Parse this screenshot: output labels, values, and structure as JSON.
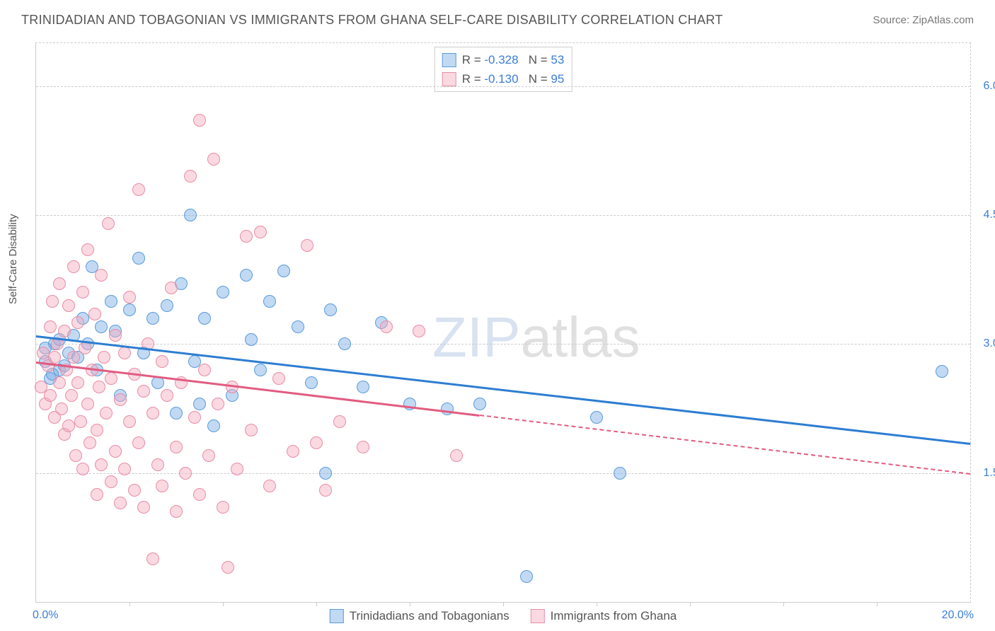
{
  "title": "TRINIDADIAN AND TOBAGONIAN VS IMMIGRANTS FROM GHANA SELF-CARE DISABILITY CORRELATION CHART",
  "source": "Source: ZipAtlas.com",
  "ylabel": "Self-Care Disability",
  "watermark_bold": "ZIP",
  "watermark_thin": "atlas",
  "chart": {
    "type": "scatter",
    "xlim": [
      0,
      20
    ],
    "ylim": [
      0,
      6.5
    ],
    "x_tick_min": "0.0%",
    "x_tick_max": "20.0%",
    "x_tick_color": "#3b7dd8",
    "y_ticks": [
      {
        "val": 1.5,
        "label": "1.5%"
      },
      {
        "val": 3.0,
        "label": "3.0%"
      },
      {
        "val": 4.5,
        "label": "4.5%"
      },
      {
        "val": 6.0,
        "label": "6.0%"
      }
    ],
    "y_tick_color": "#3b7dd8",
    "grid_color": "#cccccc",
    "background_color": "#ffffff",
    "bottom_tick_positions": [
      2,
      4,
      6,
      8,
      10,
      12,
      14,
      16,
      18
    ]
  },
  "series": [
    {
      "name": "Trinidadians and Tobagonians",
      "fill": "rgba(120,170,230,0.45)",
      "stroke": "#5a9bd8",
      "line_color": "#2d7dd2",
      "R": "-0.328",
      "N": "53",
      "trend": {
        "x1": 0,
        "y1": 3.1,
        "x2": 20,
        "y2": 1.85,
        "dashed_from": null
      },
      "points": [
        [
          0.2,
          2.8
        ],
        [
          0.3,
          2.6
        ],
        [
          0.4,
          3.0
        ],
        [
          0.5,
          2.7
        ],
        [
          0.5,
          3.05
        ],
        [
          0.6,
          2.75
        ],
        [
          0.7,
          2.9
        ],
        [
          0.8,
          3.1
        ],
        [
          0.9,
          2.85
        ],
        [
          1.0,
          3.3
        ],
        [
          1.1,
          3.0
        ],
        [
          1.2,
          3.9
        ],
        [
          1.3,
          2.7
        ],
        [
          1.4,
          3.2
        ],
        [
          1.6,
          3.5
        ],
        [
          1.7,
          3.15
        ],
        [
          1.8,
          2.4
        ],
        [
          2.0,
          3.4
        ],
        [
          2.2,
          4.0
        ],
        [
          2.3,
          2.9
        ],
        [
          2.5,
          3.3
        ],
        [
          2.6,
          2.55
        ],
        [
          2.8,
          3.45
        ],
        [
          3.0,
          2.2
        ],
        [
          3.1,
          3.7
        ],
        [
          3.3,
          4.5
        ],
        [
          3.4,
          2.8
        ],
        [
          3.5,
          2.3
        ],
        [
          3.6,
          3.3
        ],
        [
          3.8,
          2.05
        ],
        [
          4.0,
          3.6
        ],
        [
          4.2,
          2.4
        ],
        [
          4.5,
          3.8
        ],
        [
          4.6,
          3.05
        ],
        [
          4.8,
          2.7
        ],
        [
          5.0,
          3.5
        ],
        [
          5.3,
          3.85
        ],
        [
          5.6,
          3.2
        ],
        [
          5.9,
          2.55
        ],
        [
          6.2,
          1.5
        ],
        [
          6.3,
          3.4
        ],
        [
          6.6,
          3.0
        ],
        [
          7.0,
          2.5
        ],
        [
          7.4,
          3.25
        ],
        [
          8.0,
          2.3
        ],
        [
          8.8,
          2.25
        ],
        [
          9.5,
          2.3
        ],
        [
          10.5,
          0.3
        ],
        [
          12.0,
          2.15
        ],
        [
          12.5,
          1.5
        ],
        [
          19.4,
          2.68
        ],
        [
          0.2,
          2.95
        ],
        [
          0.35,
          2.65
        ]
      ]
    },
    {
      "name": "Immigrants from Ghana",
      "fill": "rgba(245,170,190,0.45)",
      "stroke": "#e88ca5",
      "line_color": "#e25b80",
      "R": "-0.130",
      "N": "95",
      "trend": {
        "x1": 0,
        "y1": 2.8,
        "x2": 20,
        "y2": 1.5,
        "dashed_from": 9.5
      },
      "points": [
        [
          0.1,
          2.5
        ],
        [
          0.15,
          2.9
        ],
        [
          0.2,
          2.3
        ],
        [
          0.25,
          2.75
        ],
        [
          0.3,
          3.2
        ],
        [
          0.3,
          2.4
        ],
        [
          0.35,
          3.5
        ],
        [
          0.4,
          2.15
        ],
        [
          0.4,
          2.85
        ],
        [
          0.45,
          3.0
        ],
        [
          0.5,
          2.55
        ],
        [
          0.5,
          3.7
        ],
        [
          0.55,
          2.25
        ],
        [
          0.6,
          3.15
        ],
        [
          0.6,
          1.95
        ],
        [
          0.65,
          2.7
        ],
        [
          0.7,
          3.45
        ],
        [
          0.7,
          2.05
        ],
        [
          0.75,
          2.4
        ],
        [
          0.8,
          3.9
        ],
        [
          0.8,
          2.85
        ],
        [
          0.85,
          1.7
        ],
        [
          0.9,
          2.55
        ],
        [
          0.9,
          3.25
        ],
        [
          0.95,
          2.1
        ],
        [
          1.0,
          3.6
        ],
        [
          1.0,
          1.55
        ],
        [
          1.05,
          2.95
        ],
        [
          1.1,
          2.3
        ],
        [
          1.1,
          4.1
        ],
        [
          1.15,
          1.85
        ],
        [
          1.2,
          2.7
        ],
        [
          1.25,
          3.35
        ],
        [
          1.3,
          2.0
        ],
        [
          1.3,
          1.25
        ],
        [
          1.35,
          2.5
        ],
        [
          1.4,
          3.8
        ],
        [
          1.4,
          1.6
        ],
        [
          1.45,
          2.85
        ],
        [
          1.5,
          2.2
        ],
        [
          1.55,
          4.4
        ],
        [
          1.6,
          1.4
        ],
        [
          1.6,
          2.6
        ],
        [
          1.7,
          3.1
        ],
        [
          1.7,
          1.75
        ],
        [
          1.8,
          2.35
        ],
        [
          1.8,
          1.15
        ],
        [
          1.9,
          2.9
        ],
        [
          1.9,
          1.55
        ],
        [
          2.0,
          2.1
        ],
        [
          2.0,
          3.55
        ],
        [
          2.1,
          1.3
        ],
        [
          2.1,
          2.65
        ],
        [
          2.2,
          4.8
        ],
        [
          2.2,
          1.85
        ],
        [
          2.3,
          2.45
        ],
        [
          2.3,
          1.1
        ],
        [
          2.4,
          3.0
        ],
        [
          2.5,
          0.5
        ],
        [
          2.5,
          2.2
        ],
        [
          2.6,
          1.6
        ],
        [
          2.7,
          2.8
        ],
        [
          2.7,
          1.35
        ],
        [
          2.8,
          2.4
        ],
        [
          2.9,
          3.65
        ],
        [
          3.0,
          1.8
        ],
        [
          3.0,
          1.05
        ],
        [
          3.1,
          2.55
        ],
        [
          3.2,
          1.5
        ],
        [
          3.3,
          4.95
        ],
        [
          3.4,
          2.15
        ],
        [
          3.5,
          1.25
        ],
        [
          3.5,
          5.6
        ],
        [
          3.6,
          2.7
        ],
        [
          3.7,
          1.7
        ],
        [
          3.8,
          5.15
        ],
        [
          3.9,
          2.3
        ],
        [
          4.0,
          1.1
        ],
        [
          4.1,
          0.4
        ],
        [
          4.2,
          2.5
        ],
        [
          4.3,
          1.55
        ],
        [
          4.5,
          4.25
        ],
        [
          4.6,
          2.0
        ],
        [
          4.8,
          4.3
        ],
        [
          5.0,
          1.35
        ],
        [
          5.2,
          2.6
        ],
        [
          5.5,
          1.75
        ],
        [
          5.8,
          4.15
        ],
        [
          6.0,
          1.85
        ],
        [
          6.2,
          1.3
        ],
        [
          6.5,
          2.1
        ],
        [
          7.0,
          1.8
        ],
        [
          7.5,
          3.2
        ],
        [
          8.2,
          3.15
        ],
        [
          9.0,
          1.7
        ]
      ]
    }
  ],
  "top_legend": {
    "R_label": "R =",
    "N_label": "N =",
    "label_color": "#555555",
    "value_color": "#3b7dd8"
  },
  "bottom_legend_text_color": "#555555"
}
